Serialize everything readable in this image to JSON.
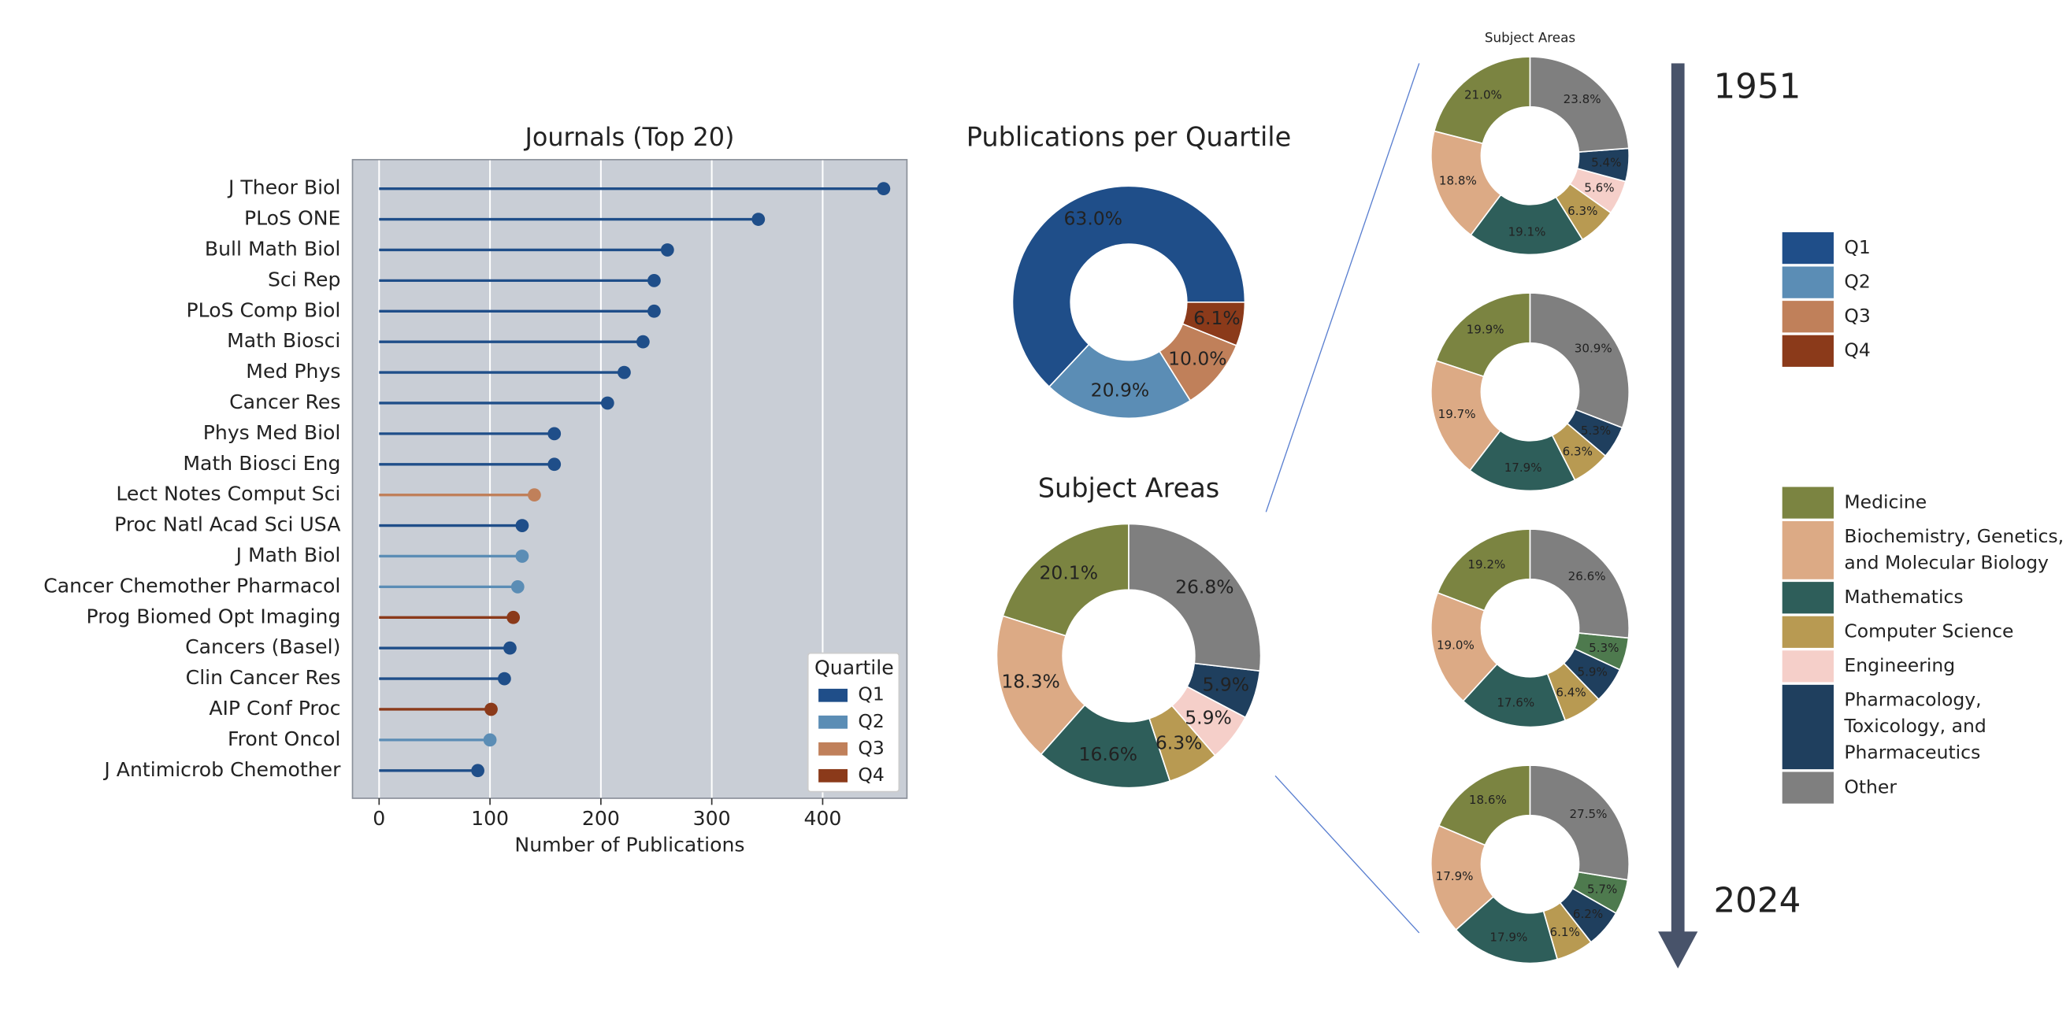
{
  "chart_data": [
    {
      "type": "lollipop",
      "title": "Journals (Top 20)",
      "xlabel": "Number of Publications",
      "categories": [
        "J Theor Biol",
        "PLoS ONE",
        "Bull Math Biol",
        "Sci Rep",
        "PLoS Comp Biol",
        "Math Biosci",
        "Med Phys",
        "Cancer Res",
        "Phys Med Biol",
        "Math Biosci Eng",
        "Lect Notes Comput Sci",
        "Proc Natl Acad Sci USA",
        "J Math Biol",
        "Cancer Chemother Pharmacol",
        "Prog Biomed Opt Imaging",
        "Cancers (Basel)",
        "Clin Cancer Res",
        "AIP Conf Proc",
        "Front Oncol",
        "J Antimicrob Chemother"
      ],
      "series": [
        {
          "name": "Q1",
          "color": "#1f4e89",
          "values": [
            455,
            342,
            260,
            248,
            248,
            238,
            221,
            206,
            158,
            158,
            null,
            129,
            null,
            null,
            null,
            118,
            113,
            null,
            null,
            89
          ]
        },
        {
          "name": "Q2",
          "color": "#5b8db5",
          "values": [
            null,
            null,
            null,
            null,
            null,
            null,
            null,
            null,
            null,
            null,
            null,
            null,
            129,
            125,
            null,
            null,
            null,
            null,
            100,
            null
          ]
        },
        {
          "name": "Q3",
          "color": "#c0805a",
          "values": [
            null,
            null,
            null,
            null,
            null,
            null,
            null,
            null,
            null,
            null,
            140,
            null,
            null,
            null,
            null,
            null,
            null,
            null,
            null,
            null
          ]
        },
        {
          "name": "Q4",
          "color": "#8b3a1a",
          "values": [
            null,
            null,
            null,
            null,
            null,
            null,
            null,
            null,
            null,
            null,
            null,
            null,
            null,
            null,
            121,
            null,
            null,
            101,
            null,
            null
          ]
        }
      ],
      "xlim": [
        -24,
        476
      ],
      "xticks": [
        0,
        100,
        200,
        300,
        400
      ],
      "grid": true,
      "legend": {
        "title": "Quartile",
        "position": "lower right"
      }
    },
    {
      "type": "donut",
      "title": "Publications per Quartile",
      "categories": [
        "Q1",
        "Q2",
        "Q3",
        "Q4"
      ],
      "values": [
        63.0,
        20.9,
        10.0,
        6.1
      ],
      "value_labels": [
        "63.0%",
        "20.9%",
        "10.0%",
        "6.1%"
      ],
      "colors": [
        "#1f4e89",
        "#5b8db5",
        "#c0805a",
        "#8b3a1a"
      ],
      "start_angle": 0,
      "direction": "counterclockwise",
      "legend": "right"
    },
    {
      "type": "donut",
      "title": "Subject Areas",
      "categories": [
        "Medicine",
        "Biochemistry, Genetics, and Molecular Biology",
        "Mathematics",
        "Computer Science",
        "Engineering",
        "Pharmacology, Toxicology, and Pharmaceutics",
        "Other"
      ],
      "values": [
        20.1,
        18.3,
        16.6,
        6.3,
        5.9,
        5.9,
        26.8
      ],
      "value_labels": [
        "20.1%",
        "18.3%",
        "16.6%",
        "6.3%",
        "5.9%",
        "5.9%",
        "26.8%"
      ],
      "colors": [
        "#7b8441",
        "#dcaa85",
        "#2e5e5a",
        "#b89a52",
        "#f5cfc9",
        "#1f3f5e",
        "#7f7f7f"
      ],
      "start_angle": 90,
      "direction": "counterclockwise",
      "legend": "right"
    },
    {
      "type": "donut-column",
      "title": "Subject Areas",
      "start_label": "1951",
      "end_label": "2024",
      "start_angle": 90,
      "direction": "counterclockwise",
      "donuts": [
        {
          "values": [
            21.0,
            18.8,
            19.1,
            6.3,
            5.6,
            5.4,
            23.8
          ],
          "value_labels": [
            "21.0%",
            "18.8%",
            "19.1%",
            "6.3%",
            "5.6%",
            "5.4%",
            "23.8%"
          ],
          "colors": [
            "#7b8441",
            "#dcaa85",
            "#2e5e5a",
            "#b89a52",
            "#f5cfc9",
            "#1f3f5e",
            "#7f7f7f"
          ]
        },
        {
          "values": [
            19.9,
            19.7,
            17.9,
            6.3,
            5.3,
            30.9
          ],
          "value_labels": [
            "19.9%",
            "19.7%",
            "17.9%",
            "6.3%",
            "5.3%",
            "30.9%"
          ],
          "colors": [
            "#7b8441",
            "#dcaa85",
            "#2e5e5a",
            "#b89a52",
            "#1f3f5e",
            "#7f7f7f"
          ]
        },
        {
          "values": [
            19.2,
            19.0,
            17.6,
            6.4,
            5.9,
            5.3,
            26.6
          ],
          "value_labels": [
            "19.2%",
            "19.0%",
            "17.6%",
            "6.4%",
            "5.9%",
            "5.3%",
            "26.6%"
          ],
          "colors": [
            "#7b8441",
            "#dcaa85",
            "#2e5e5a",
            "#b89a52",
            "#1f3f5e",
            "#4e7a4e",
            "#7f7f7f"
          ]
        },
        {
          "values": [
            18.6,
            17.9,
            17.9,
            6.1,
            6.2,
            5.7,
            27.5
          ],
          "value_labels": [
            "18.6%",
            "17.9%",
            "17.9%",
            "6.1%",
            "6.2%",
            "5.7%",
            "27.5%"
          ],
          "colors": [
            "#7b8441",
            "#dcaa85",
            "#2e5e5a",
            "#b89a52",
            "#1f3f5e",
            "#4e7a4e",
            "#7f7f7f"
          ]
        }
      ]
    }
  ]
}
